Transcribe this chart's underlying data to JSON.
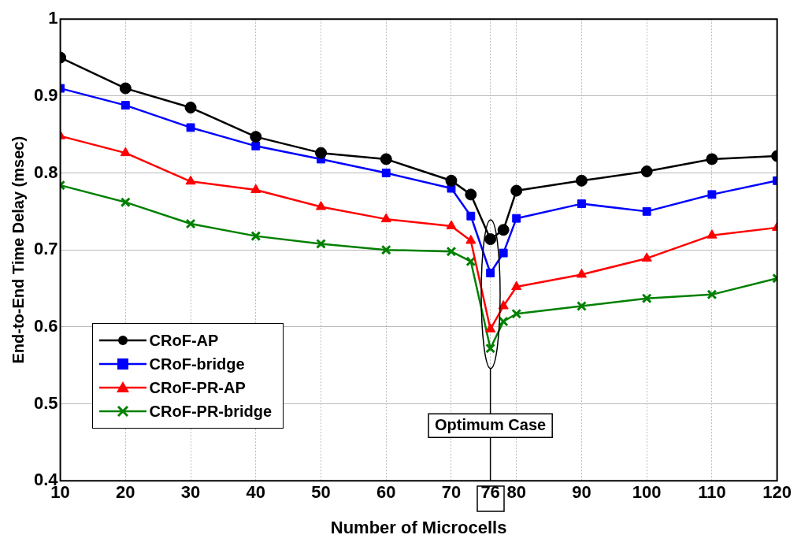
{
  "chart_data": {
    "type": "line",
    "xlabel": "Number of Microcells",
    "ylabel": "End-to-End Time Delay (msec)",
    "x": [
      10,
      20,
      30,
      40,
      50,
      60,
      70,
      73,
      76,
      78,
      80,
      90,
      100,
      110,
      120
    ],
    "series": [
      {
        "name": "CRoF-AP",
        "color": "#000000",
        "marker": "circle",
        "values": [
          0.95,
          0.91,
          0.885,
          0.847,
          0.826,
          0.818,
          0.79,
          0.772,
          0.714,
          0.726,
          0.777,
          0.79,
          0.802,
          0.818,
          0.822
        ]
      },
      {
        "name": "CRoF-bridge",
        "color": "#0000ff",
        "marker": "square",
        "values": [
          0.91,
          0.888,
          0.859,
          0.835,
          0.818,
          0.8,
          0.78,
          0.744,
          0.67,
          0.696,
          0.741,
          0.76,
          0.75,
          0.772,
          0.79
        ]
      },
      {
        "name": "CRoF-PR-AP",
        "color": "#ff0000",
        "marker": "triangle",
        "values": [
          0.848,
          0.826,
          0.789,
          0.778,
          0.756,
          0.74,
          0.731,
          0.712,
          0.597,
          0.627,
          0.652,
          0.668,
          0.689,
          0.719,
          0.729
        ]
      },
      {
        "name": "CRoF-PR-bridge",
        "color": "#008000",
        "marker": "cross",
        "values": [
          0.784,
          0.762,
          0.734,
          0.718,
          0.708,
          0.7,
          0.698,
          0.685,
          0.572,
          0.607,
          0.617,
          0.627,
          0.637,
          0.642,
          0.663
        ]
      }
    ],
    "xlim": [
      10,
      120
    ],
    "xticks": [
      10,
      20,
      30,
      40,
      50,
      60,
      70,
      76,
      80,
      90,
      100,
      110,
      120
    ],
    "ylim": [
      0.4,
      1
    ],
    "yticks": [
      0.4,
      0.5,
      0.6,
      0.7,
      0.8,
      0.9,
      1
    ],
    "annotations": [
      "Optimum Case"
    ],
    "ref_lines": [
      {
        "axis": "x",
        "value": 76
      }
    ],
    "grid": true,
    "legend": "bottom left",
    "line_style": "solid"
  }
}
